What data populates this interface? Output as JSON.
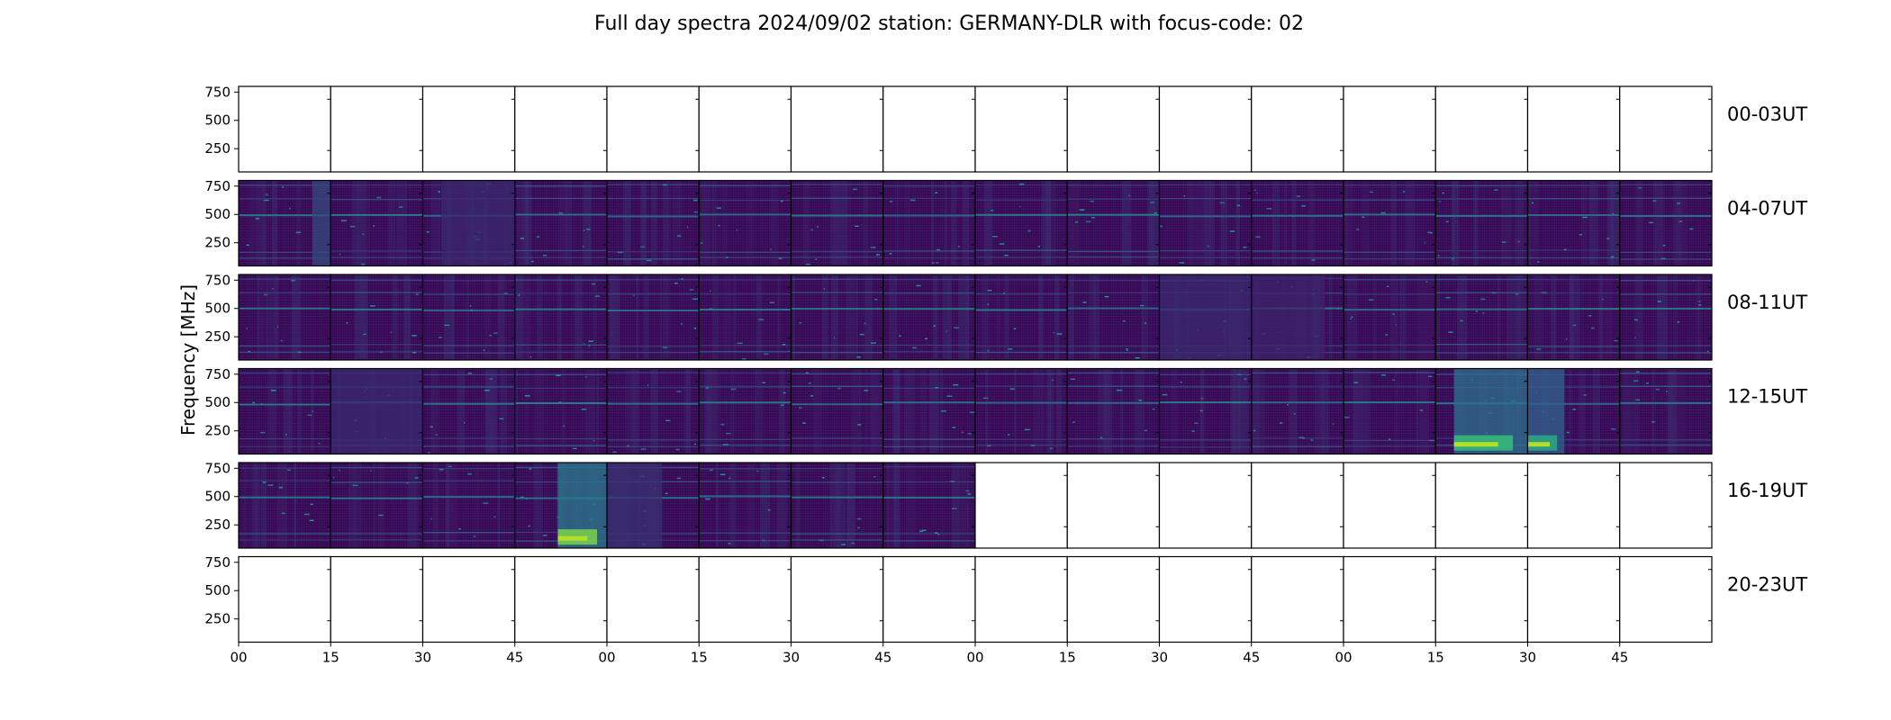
{
  "chart_data": {
    "type": "heatmap",
    "title": "Full day spectra 2024/09/02 station: GERMANY-DLR with focus-code: 02",
    "ylabel": "Frequency [MHz]",
    "xlabel": "",
    "y_ticks": [
      "250",
      "500",
      "750"
    ],
    "y_tick_values": [
      250,
      500,
      750
    ],
    "ylim": [
      45,
      800
    ],
    "x_ticks": [
      "00",
      "15",
      "30",
      "45",
      "00",
      "15",
      "30",
      "45",
      "00",
      "15",
      "30",
      "45",
      "00",
      "15",
      "30",
      "45"
    ],
    "rows": [
      {
        "label": "00-03UT",
        "filled": 0
      },
      {
        "label": "04-07UT",
        "filled": 16
      },
      {
        "label": "08-11UT",
        "filled": 16
      },
      {
        "label": "12-15UT",
        "filled": 16
      },
      {
        "label": "16-19UT",
        "filled": 8
      },
      {
        "label": "20-23UT",
        "filled": 0
      }
    ],
    "panels_per_row": 16,
    "grid": false,
    "colormap": [
      "#440154",
      "#3b2a6e",
      "#31688e",
      "#21918c",
      "#35b779",
      "#b5de2b"
    ],
    "bursts": [
      {
        "row": 1,
        "panel": 0,
        "minutes": [
          12,
          15
        ],
        "level": 0.55
      },
      {
        "row": 1,
        "panel": 2,
        "minutes": [
          3,
          15
        ],
        "level": 0.35
      },
      {
        "row": 2,
        "panel": 10,
        "minutes": [
          0,
          15
        ],
        "level": 0.35
      },
      {
        "row": 2,
        "panel": 11,
        "minutes": [
          0,
          12
        ],
        "level": 0.3
      },
      {
        "row": 3,
        "panel": 1,
        "minutes": [
          0,
          15
        ],
        "level": 0.35
      },
      {
        "row": 3,
        "panel": 13,
        "minutes": [
          3,
          15
        ],
        "level": 0.8
      },
      {
        "row": 3,
        "panel": 14,
        "minutes": [
          0,
          6
        ],
        "level": 0.7
      },
      {
        "row": 4,
        "panel": 3,
        "minutes": [
          7,
          15
        ],
        "level": 0.9
      },
      {
        "row": 4,
        "panel": 4,
        "minutes": [
          0,
          9
        ],
        "level": 0.4
      }
    ]
  }
}
